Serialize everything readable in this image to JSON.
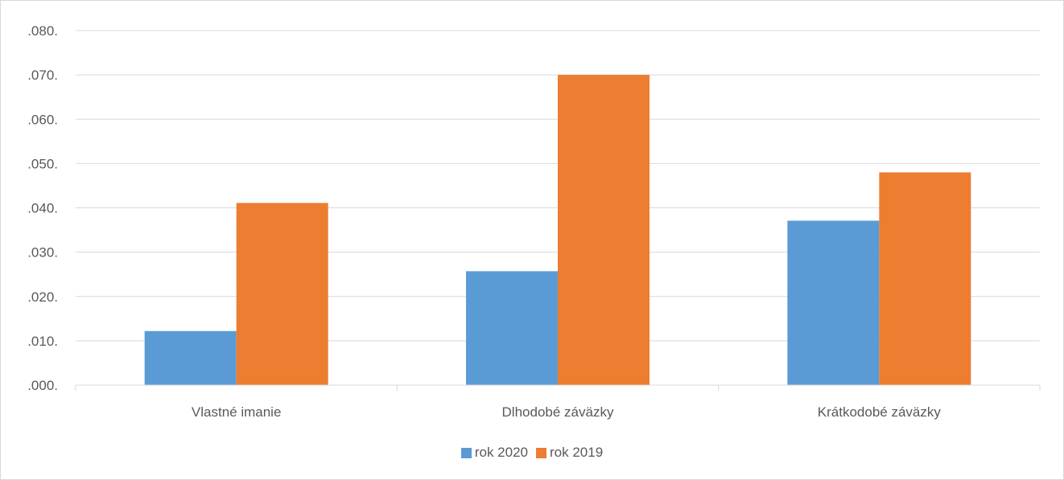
{
  "chart_data": {
    "type": "bar",
    "categories": [
      "Vlastné imanie",
      "Dlhodobé záväzky",
      "Krátkodobé záväzky"
    ],
    "series": [
      {
        "name": "rok 2020",
        "values": [
          0.0122,
          0.0257,
          0.0371
        ],
        "color": "#5b9bd5"
      },
      {
        "name": "rok 2019",
        "values": [
          0.0411,
          0.07,
          0.048
        ],
        "color": "#ed7d31"
      }
    ],
    "ylim": [
      0,
      0.08
    ],
    "y_ticks": [
      0,
      0.01,
      0.02,
      0.03,
      0.04,
      0.05,
      0.06,
      0.07,
      0.08
    ],
    "y_tick_labels": [
      ".000.",
      ".010.",
      ".020.",
      ".030.",
      ".040.",
      ".050.",
      ".060.",
      ".070.",
      ".080."
    ],
    "title": "",
    "xlabel": "",
    "ylabel": "",
    "grid": true,
    "legend_position": "bottom"
  },
  "legend": {
    "items": [
      {
        "label": "rok 2020",
        "color": "#5b9bd5"
      },
      {
        "label": "rok 2019",
        "color": "#ed7d31"
      }
    ]
  }
}
